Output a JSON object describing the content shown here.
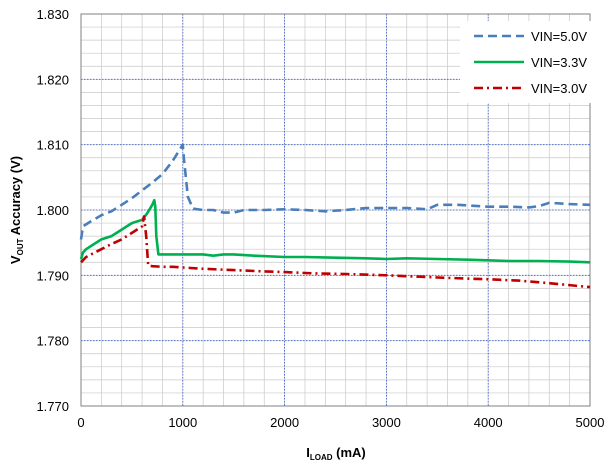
{
  "chart_data": {
    "type": "line",
    "title": "",
    "xlabel": {
      "main": "I",
      "sub": "LOAD",
      "unit": " (mA)"
    },
    "ylabel": {
      "main": "V",
      "sub": "OUT",
      "rest": " Accuracy (V)"
    },
    "xlim": [
      0,
      5000
    ],
    "ylim": [
      1.77,
      1.83
    ],
    "x_ticks": [
      0,
      1000,
      2000,
      3000,
      4000,
      5000
    ],
    "x_tick_labels": [
      "0",
      "1000",
      "2000",
      "3000",
      "4000",
      "5000"
    ],
    "y_ticks": [
      1.77,
      1.78,
      1.79,
      1.8,
      1.81,
      1.82,
      1.83
    ],
    "y_tick_labels": [
      "1.770",
      "1.780",
      "1.790",
      "1.800",
      "1.810",
      "1.820",
      "1.830"
    ],
    "x_minor_step": 200,
    "y_minor_step": 0.002,
    "grid": true,
    "legend_position": "top-right",
    "series": [
      {
        "name": "VIN=5.0V",
        "color": "#4a7ebb",
        "dash": "dash",
        "x": [
          0,
          20,
          50,
          100,
          200,
          300,
          400,
          500,
          600,
          700,
          800,
          900,
          960,
          1000,
          1010,
          1050,
          1100,
          1200,
          1300,
          1400,
          1500,
          1600,
          1800,
          2000,
          2200,
          2400,
          2600,
          2800,
          3000,
          3200,
          3400,
          3500,
          3700,
          3900,
          4000,
          4200,
          4400,
          4500,
          4600,
          4800,
          5000
        ],
        "y": [
          1.7955,
          1.7975,
          1.7978,
          1.7983,
          1.7992,
          1.7998,
          1.8008,
          1.8018,
          1.803,
          1.8042,
          1.8055,
          1.8075,
          1.809,
          1.81,
          1.808,
          1.802,
          1.8002,
          1.8,
          1.8,
          1.7996,
          1.7996,
          1.8,
          1.8,
          1.8001,
          1.8,
          1.7998,
          1.8,
          1.8003,
          1.8003,
          1.8003,
          1.8001,
          1.8008,
          1.8008,
          1.8006,
          1.8005,
          1.8005,
          1.8004,
          1.8006,
          1.8011,
          1.8009,
          1.8008
        ]
      },
      {
        "name": "VIN=3.3V",
        "color": "#00b050",
        "dash": "solid",
        "x": [
          0,
          20,
          50,
          100,
          200,
          300,
          400,
          500,
          600,
          650,
          700,
          720,
          730,
          740,
          760,
          800,
          900,
          1000,
          1100,
          1200,
          1300,
          1400,
          1500,
          1700,
          2000,
          2200,
          2500,
          2800,
          3000,
          3200,
          3500,
          3800,
          4000,
          4200,
          4500,
          4800,
          5000
        ],
        "y": [
          1.7925,
          1.7935,
          1.794,
          1.7945,
          1.7955,
          1.796,
          1.797,
          1.798,
          1.7985,
          1.7995,
          1.8008,
          1.8015,
          1.8005,
          1.796,
          1.7932,
          1.7932,
          1.7932,
          1.7932,
          1.7932,
          1.7932,
          1.793,
          1.7932,
          1.7932,
          1.793,
          1.7928,
          1.7928,
          1.7927,
          1.7926,
          1.7925,
          1.7926,
          1.7925,
          1.7924,
          1.7923,
          1.7922,
          1.7922,
          1.7921,
          1.792
        ]
      },
      {
        "name": "VIN=3.0V",
        "color": "#c00000",
        "dash": "dashdot",
        "x": [
          0,
          50,
          100,
          200,
          300,
          400,
          500,
          550,
          600,
          620,
          640,
          660,
          700,
          800,
          900,
          1000,
          1200,
          1500,
          1800,
          2000,
          2300,
          2600,
          3000,
          3300,
          3600,
          4000,
          4300,
          4600,
          5000
        ],
        "y": [
          1.792,
          1.7928,
          1.7932,
          1.794,
          1.7948,
          1.7955,
          1.7965,
          1.797,
          1.7975,
          1.799,
          1.796,
          1.7915,
          1.7914,
          1.7913,
          1.7913,
          1.7912,
          1.791,
          1.7908,
          1.7906,
          1.7905,
          1.7903,
          1.7902,
          1.79,
          1.7898,
          1.7896,
          1.7894,
          1.7892,
          1.7888,
          1.7882
        ]
      }
    ]
  }
}
